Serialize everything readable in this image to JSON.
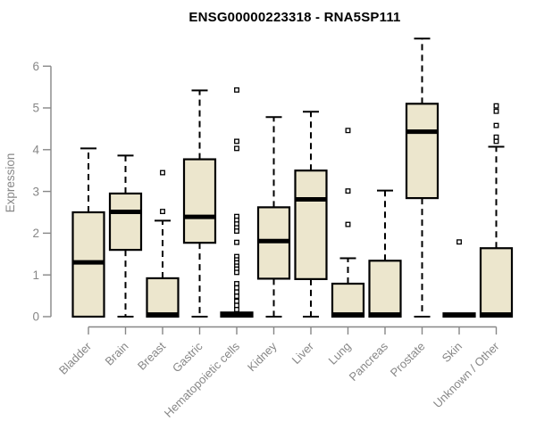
{
  "chart_data": {
    "type": "boxplot",
    "title": "ENSG00000223318 - RNA5SP111",
    "ylabel": "Expression",
    "xlabel": "",
    "ylim": [
      0,
      6.8
    ],
    "yticks": [
      0,
      1,
      2,
      3,
      4,
      5,
      6
    ],
    "grid": false,
    "legend": "none",
    "outlier_marker": "open-square",
    "whisker_style": "dashed",
    "categories": [
      "Bladder",
      "Brain",
      "Breast",
      "Gastric",
      "Hematopoietic cells",
      "Kidney",
      "Liver",
      "Lung",
      "Pancreas",
      "Prostate",
      "Skin",
      "Unknown / Other"
    ],
    "boxes": [
      {
        "category": "Bladder",
        "min": 0,
        "q1": 0,
        "median": 1.3,
        "q3": 2.5,
        "max": 4.03,
        "outliers": []
      },
      {
        "category": "Brain",
        "min": 0,
        "q1": 1.6,
        "median": 2.51,
        "q3": 2.95,
        "max": 3.86,
        "outliers": []
      },
      {
        "category": "Breast",
        "min": 0,
        "q1": 0,
        "median": 0.05,
        "q3": 0.92,
        "max": 2.3,
        "outliers": [
          2.52,
          3.45
        ]
      },
      {
        "category": "Gastric",
        "min": 0,
        "q1": 1.77,
        "median": 2.39,
        "q3": 3.77,
        "max": 5.42,
        "outliers": []
      },
      {
        "category": "Hematopoietic cells",
        "min": 0,
        "q1": 0,
        "median": 0.05,
        "q3": 0.1,
        "max": 0.1,
        "outliers": [
          5.43,
          4.2,
          4.03,
          2.4,
          2.31,
          2.22,
          2.13,
          2.05,
          1.78,
          1.44,
          1.36,
          1.29,
          1.21,
          1.14,
          1.06,
          0.79,
          0.69,
          0.59,
          0.49,
          0.37,
          0.27,
          0.17
        ]
      },
      {
        "category": "Kidney",
        "min": 0,
        "q1": 0.91,
        "median": 1.81,
        "q3": 2.62,
        "max": 4.78,
        "outliers": []
      },
      {
        "category": "Liver",
        "min": 0,
        "q1": 0.9,
        "median": 2.81,
        "q3": 3.5,
        "max": 4.91,
        "outliers": []
      },
      {
        "category": "Lung",
        "min": 0,
        "q1": 0,
        "median": 0.05,
        "q3": 0.79,
        "max": 1.4,
        "outliers": [
          2.21,
          3.01,
          4.46
        ]
      },
      {
        "category": "Pancreas",
        "min": 0,
        "q1": 0,
        "median": 0.05,
        "q3": 1.34,
        "max": 3.02,
        "outliers": []
      },
      {
        "category": "Prostate",
        "min": 0,
        "q1": 2.84,
        "median": 4.43,
        "q3": 5.1,
        "max": 6.66,
        "outliers": []
      },
      {
        "category": "Skin",
        "min": 0,
        "q1": 0,
        "median": 0.04,
        "q3": 0.08,
        "max": 0.08,
        "outliers": [
          1.79
        ]
      },
      {
        "category": "Unknown / Other",
        "min": 0,
        "q1": 0,
        "median": 0.05,
        "q3": 1.64,
        "max": 4.07,
        "outliers": [
          4.2,
          4.3,
          4.58,
          4.92,
          5.05
        ]
      }
    ],
    "colors": {
      "box_fill": "#ECE6CD",
      "box_border": "#000000",
      "median": "#000000",
      "whisker": "#000000",
      "outlier": "#000000",
      "axis": "#878787",
      "title": "#000000",
      "background": "#ffffff"
    }
  }
}
